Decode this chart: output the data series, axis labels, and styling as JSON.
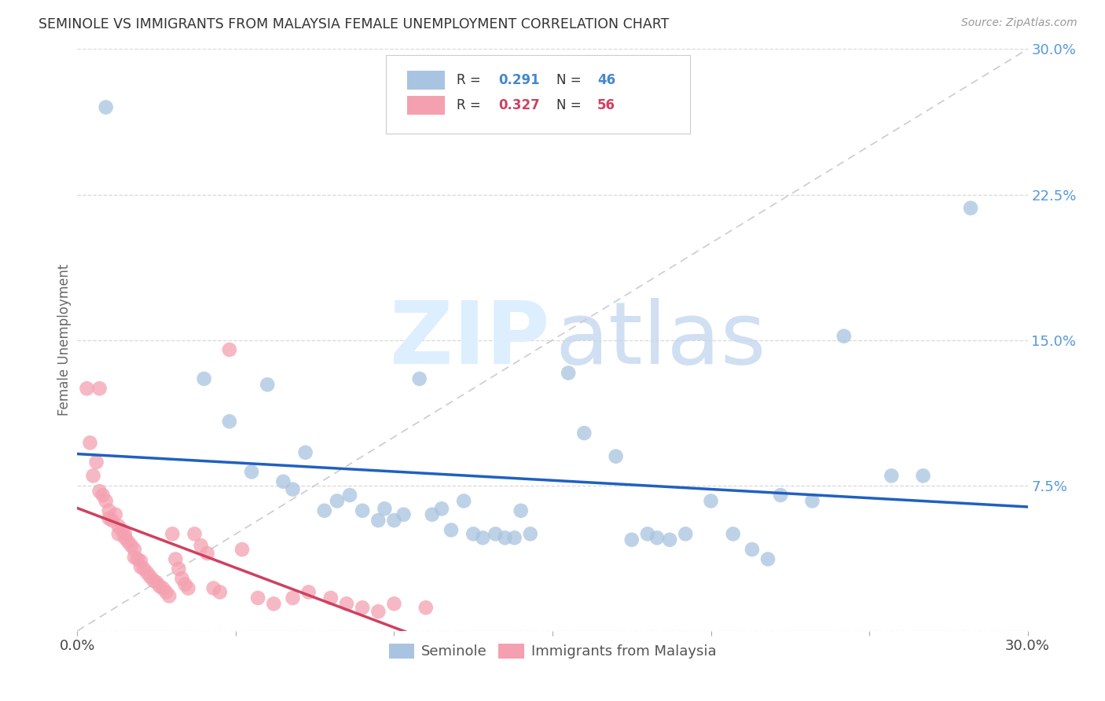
{
  "title": "SEMINOLE VS IMMIGRANTS FROM MALAYSIA FEMALE UNEMPLOYMENT CORRELATION CHART",
  "source": "Source: ZipAtlas.com",
  "ylabel": "Female Unemployment",
  "xlim": [
    0.0,
    0.3
  ],
  "ylim": [
    0.0,
    0.3
  ],
  "xtick_vals": [
    0.0,
    0.05,
    0.1,
    0.15,
    0.2,
    0.25,
    0.3
  ],
  "xtick_labels": [
    "0.0%",
    "",
    "",
    "",
    "",
    "",
    "30.0%"
  ],
  "ytick_vals": [
    0.0,
    0.075,
    0.15,
    0.225,
    0.3
  ],
  "ytick_labels": [
    "",
    "7.5%",
    "15.0%",
    "22.5%",
    "30.0%"
  ],
  "legend_r1": "0.291",
  "legend_n1": "46",
  "legend_r2": "0.327",
  "legend_n2": "56",
  "seminole_color": "#a8c4e0",
  "malaysia_color": "#f4a0b0",
  "seminole_line_color": "#2060c0",
  "malaysia_line_color": "#d04060",
  "seminole_scatter": [
    [
      0.009,
      0.27
    ],
    [
      0.04,
      0.13
    ],
    [
      0.048,
      0.108
    ],
    [
      0.055,
      0.082
    ],
    [
      0.06,
      0.127
    ],
    [
      0.065,
      0.077
    ],
    [
      0.068,
      0.073
    ],
    [
      0.072,
      0.092
    ],
    [
      0.078,
      0.062
    ],
    [
      0.082,
      0.067
    ],
    [
      0.086,
      0.07
    ],
    [
      0.09,
      0.062
    ],
    [
      0.095,
      0.057
    ],
    [
      0.097,
      0.063
    ],
    [
      0.1,
      0.057
    ],
    [
      0.103,
      0.06
    ],
    [
      0.108,
      0.13
    ],
    [
      0.112,
      0.06
    ],
    [
      0.115,
      0.063
    ],
    [
      0.118,
      0.052
    ],
    [
      0.122,
      0.067
    ],
    [
      0.125,
      0.05
    ],
    [
      0.128,
      0.048
    ],
    [
      0.132,
      0.05
    ],
    [
      0.135,
      0.048
    ],
    [
      0.138,
      0.048
    ],
    [
      0.14,
      0.062
    ],
    [
      0.143,
      0.05
    ],
    [
      0.155,
      0.133
    ],
    [
      0.16,
      0.102
    ],
    [
      0.17,
      0.09
    ],
    [
      0.175,
      0.047
    ],
    [
      0.18,
      0.05
    ],
    [
      0.183,
      0.048
    ],
    [
      0.187,
      0.047
    ],
    [
      0.192,
      0.05
    ],
    [
      0.2,
      0.067
    ],
    [
      0.207,
      0.05
    ],
    [
      0.213,
      0.042
    ],
    [
      0.218,
      0.037
    ],
    [
      0.222,
      0.07
    ],
    [
      0.232,
      0.067
    ],
    [
      0.242,
      0.152
    ],
    [
      0.257,
      0.08
    ],
    [
      0.267,
      0.08
    ],
    [
      0.282,
      0.218
    ]
  ],
  "malaysia_scatter": [
    [
      0.003,
      0.125
    ],
    [
      0.004,
      0.097
    ],
    [
      0.005,
      0.08
    ],
    [
      0.006,
      0.087
    ],
    [
      0.007,
      0.072
    ],
    [
      0.007,
      0.125
    ],
    [
      0.008,
      0.07
    ],
    [
      0.009,
      0.067
    ],
    [
      0.01,
      0.062
    ],
    [
      0.01,
      0.058
    ],
    [
      0.011,
      0.057
    ],
    [
      0.012,
      0.06
    ],
    [
      0.013,
      0.054
    ],
    [
      0.013,
      0.05
    ],
    [
      0.014,
      0.052
    ],
    [
      0.015,
      0.05
    ],
    [
      0.015,
      0.048
    ],
    [
      0.016,
      0.046
    ],
    [
      0.017,
      0.044
    ],
    [
      0.018,
      0.042
    ],
    [
      0.018,
      0.038
    ],
    [
      0.019,
      0.037
    ],
    [
      0.02,
      0.036
    ],
    [
      0.02,
      0.033
    ],
    [
      0.021,
      0.032
    ],
    [
      0.022,
      0.03
    ],
    [
      0.023,
      0.028
    ],
    [
      0.024,
      0.026
    ],
    [
      0.025,
      0.025
    ],
    [
      0.026,
      0.023
    ],
    [
      0.027,
      0.022
    ],
    [
      0.028,
      0.02
    ],
    [
      0.029,
      0.018
    ],
    [
      0.03,
      0.05
    ],
    [
      0.031,
      0.037
    ],
    [
      0.032,
      0.032
    ],
    [
      0.033,
      0.027
    ],
    [
      0.034,
      0.024
    ],
    [
      0.035,
      0.022
    ],
    [
      0.037,
      0.05
    ],
    [
      0.039,
      0.044
    ],
    [
      0.041,
      0.04
    ],
    [
      0.043,
      0.022
    ],
    [
      0.045,
      0.02
    ],
    [
      0.048,
      0.145
    ],
    [
      0.052,
      0.042
    ],
    [
      0.057,
      0.017
    ],
    [
      0.062,
      0.014
    ],
    [
      0.068,
      0.017
    ],
    [
      0.073,
      0.02
    ],
    [
      0.08,
      0.017
    ],
    [
      0.085,
      0.014
    ],
    [
      0.09,
      0.012
    ],
    [
      0.095,
      0.01
    ],
    [
      0.1,
      0.014
    ],
    [
      0.11,
      0.012
    ]
  ],
  "background_color": "#ffffff",
  "grid_color": "#d8d8d8"
}
